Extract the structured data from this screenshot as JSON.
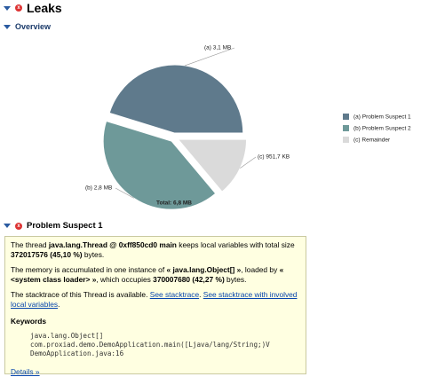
{
  "header": {
    "title": "Leaks"
  },
  "overview": {
    "title": "Overview"
  },
  "chart_data": {
    "type": "pie",
    "categories": [
      "(a)  Problem Suspect 1",
      "(b)  Problem Suspect 2",
      "(c)  Remainder"
    ],
    "values": [
      3.1,
      2.8,
      0.9517
    ],
    "value_labels": [
      "(a)  3,1 MB",
      "(b)  2,8 MB",
      "(c)  951,7 KB"
    ],
    "colors": [
      "#5f7a8c",
      "#6e9999",
      "#dadada"
    ],
    "total_label": "Total: 6,8 MB"
  },
  "suspect": {
    "title": "Problem Suspect 1",
    "paragraphs": [
      [
        {
          "text": "The thread "
        },
        {
          "text": "java.lang.Thread @ 0xff850cd0 main",
          "style": "bold"
        },
        {
          "text": " keeps local variables with total size "
        },
        {
          "text": "372017576 (45,10 %)",
          "style": "bold"
        },
        {
          "text": " bytes."
        }
      ],
      [
        {
          "text": "The memory is accumulated in one instance of "
        },
        {
          "text": "« java.lang.Object[] »",
          "style": "bold"
        },
        {
          "text": ", loaded by "
        },
        {
          "text": "« <system class loader> »",
          "style": "bold"
        },
        {
          "text": ", which occupies "
        },
        {
          "text": "370007680 (42,27 %)",
          "style": "bold"
        },
        {
          "text": " bytes."
        }
      ],
      [
        {
          "text": "The stacktrace of this Thread is available. "
        },
        {
          "text": "See stacktrace",
          "style": "link"
        },
        {
          "text": ". "
        },
        {
          "text": "See stacktrace with involved local variables",
          "style": "link"
        },
        {
          "text": "."
        }
      ]
    ],
    "keywords_title": "Keywords",
    "keywords": [
      "java.lang.Object[]",
      "com.proxiad.demo.DemoApplication.main([Ljava/lang/String;)V",
      "DemoApplication.java:16"
    ],
    "details": "Details »"
  }
}
